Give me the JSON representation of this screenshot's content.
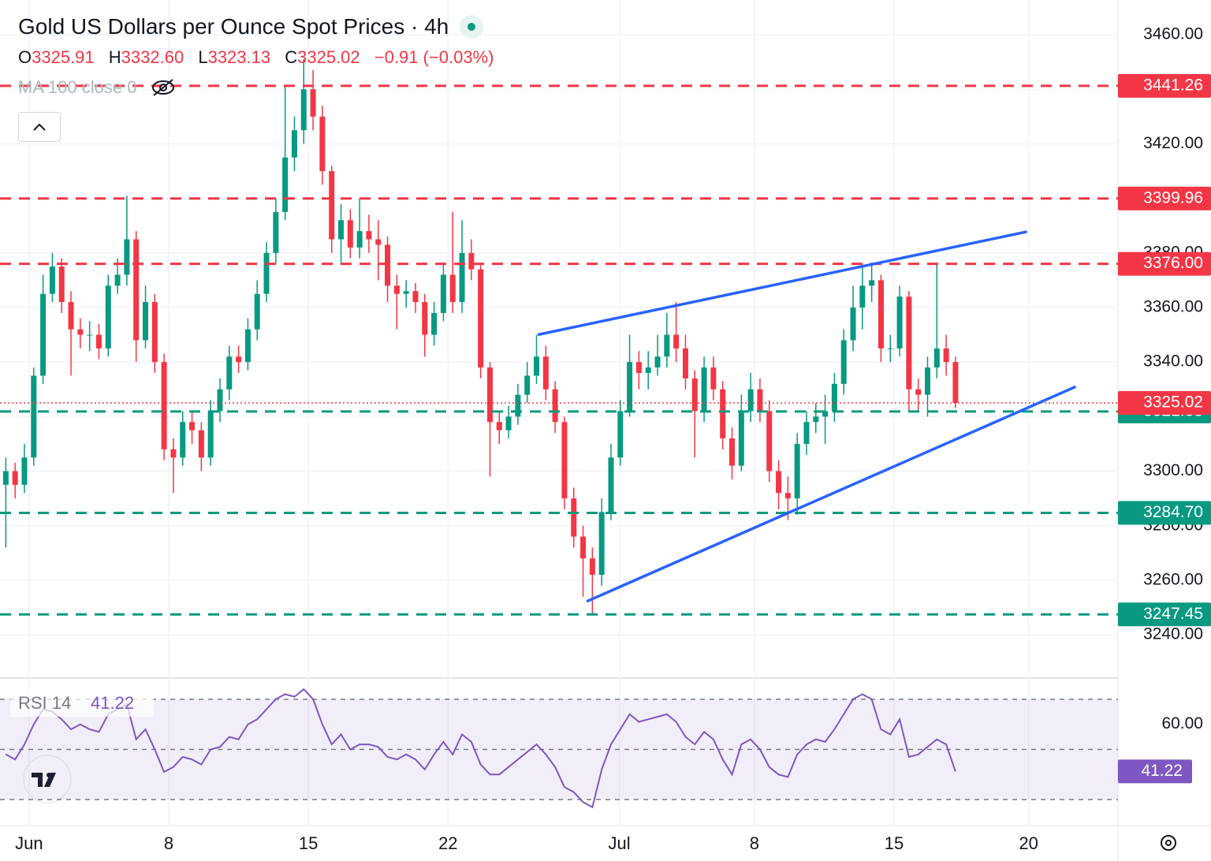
{
  "header": {
    "title": "Gold US Dollars per Ounce Spot Prices · 4h",
    "ohlc": [
      {
        "key": "O",
        "value": "3325.91"
      },
      {
        "key": "H",
        "value": "3332.60"
      },
      {
        "key": "L",
        "value": "3323.13"
      },
      {
        "key": "C",
        "value": "3325.02"
      }
    ],
    "change": "−0.91 (−0.03%)",
    "indicator": "MA 100 close 0"
  },
  "chart_data": [
    {
      "type": "candlestick",
      "x": [
        -5,
        -3,
        -1,
        1,
        3,
        5,
        7,
        9,
        11,
        13,
        15,
        17,
        19,
        21,
        23,
        25,
        27,
        29,
        31,
        33,
        35,
        37,
        39,
        41,
        43,
        45,
        47,
        49,
        51,
        53,
        55,
        57,
        59,
        61,
        63,
        65,
        67,
        69,
        71,
        73,
        75,
        77,
        79,
        81,
        83,
        85,
        87,
        89,
        91,
        93,
        95,
        97,
        99,
        101,
        103,
        105,
        107,
        109,
        111,
        113,
        115,
        117,
        119,
        121,
        123,
        125,
        127,
        129,
        131,
        133,
        135,
        137,
        139,
        141,
        143,
        145,
        147,
        149,
        151,
        153,
        155,
        157,
        159,
        161,
        163,
        165,
        167,
        169,
        171,
        173,
        175,
        177,
        179,
        181,
        183,
        185,
        187,
        189,
        191,
        193,
        195,
        197,
        199
      ],
      "open": [
        3295,
        3300,
        3295,
        3305,
        3335,
        3365,
        3375,
        3362,
        3352,
        3350,
        3350,
        3345,
        3368,
        3372,
        3385,
        3348,
        3362,
        3340,
        3308,
        3305,
        3318,
        3315,
        3305,
        3322,
        3330,
        3342,
        3340,
        3352,
        3365,
        3380,
        3395,
        3415,
        3425,
        3440,
        3430,
        3410,
        3385,
        3392,
        3382,
        3388,
        3385,
        3383,
        3368,
        3365,
        3366,
        3362,
        3350,
        3358,
        3372,
        3362,
        3380,
        3374,
        3338,
        3318,
        3315,
        3320,
        3328,
        3335,
        3342,
        3330,
        3318,
        3290,
        3276,
        3268,
        3262,
        3285,
        3305,
        3322,
        3340,
        3336,
        3338,
        3342,
        3350,
        3345,
        3334,
        3322,
        3338,
        3330,
        3312,
        3302,
        3322,
        3330,
        3322,
        3300,
        3292,
        3290,
        3310,
        3318,
        3320,
        3322,
        3332,
        3348,
        3360,
        3368,
        3370,
        3345,
        3345,
        3364,
        3330,
        3328,
        3338,
        3345,
        3340
      ],
      "high": [
        3305,
        3303,
        3310,
        3338,
        3372,
        3380,
        3378,
        3366,
        3356,
        3355,
        3354,
        3372,
        3378,
        3401,
        3388,
        3368,
        3365,
        3343,
        3312,
        3322,
        3322,
        3318,
        3326,
        3334,
        3346,
        3346,
        3356,
        3370,
        3384,
        3400,
        3441,
        3430,
        3451,
        3447,
        3434,
        3412,
        3398,
        3396,
        3400,
        3394,
        3392,
        3386,
        3372,
        3370,
        3369,
        3365,
        3362,
        3376,
        3395,
        3392,
        3385,
        3376,
        3340,
        3322,
        3324,
        3332,
        3340,
        3350,
        3346,
        3333,
        3320,
        3294,
        3280,
        3272,
        3290,
        3310,
        3326,
        3350,
        3344,
        3344,
        3350,
        3358,
        3362,
        3350,
        3337,
        3342,
        3342,
        3333,
        3316,
        3328,
        3336,
        3334,
        3326,
        3304,
        3298,
        3314,
        3322,
        3325,
        3328,
        3336,
        3352,
        3368,
        3376,
        3376,
        3372,
        3350,
        3368,
        3366,
        3334,
        3342,
        3376,
        3350,
        3342
      ],
      "low": [
        3272,
        3290,
        3292,
        3302,
        3332,
        3362,
        3358,
        3335,
        3345,
        3344,
        3341,
        3342,
        3365,
        3368,
        3340,
        3345,
        3336,
        3304,
        3292,
        3302,
        3310,
        3300,
        3302,
        3318,
        3326,
        3336,
        3337,
        3348,
        3362,
        3376,
        3392,
        3410,
        3420,
        3425,
        3405,
        3380,
        3376,
        3378,
        3378,
        3380,
        3370,
        3362,
        3352,
        3360,
        3358,
        3342,
        3346,
        3355,
        3358,
        3358,
        3370,
        3334,
        3298,
        3310,
        3312,
        3317,
        3325,
        3332,
        3326,
        3314,
        3286,
        3272,
        3254,
        3247.45,
        3258,
        3282,
        3302,
        3320,
        3330,
        3330,
        3335,
        3338,
        3340,
        3330,
        3305,
        3318,
        3326,
        3308,
        3297,
        3300,
        3318,
        3318,
        3296,
        3286,
        3282,
        3284,
        3306,
        3314,
        3310,
        3318,
        3328,
        3344,
        3352,
        3362,
        3340,
        3340,
        3342,
        3322,
        3322,
        3320,
        3334,
        3335,
        3323.13
      ],
      "close": [
        3300,
        3295,
        3305,
        3335,
        3365,
        3375,
        3362,
        3352,
        3350,
        3350,
        3345,
        3368,
        3372,
        3385,
        3348,
        3362,
        3340,
        3308,
        3305,
        3318,
        3315,
        3305,
        3322,
        3330,
        3342,
        3340,
        3352,
        3365,
        3380,
        3395,
        3415,
        3425,
        3440,
        3430,
        3410,
        3385,
        3392,
        3382,
        3388,
        3385,
        3383,
        3368,
        3365,
        3366,
        3362,
        3350,
        3358,
        3372,
        3362,
        3380,
        3374,
        3338,
        3318,
        3315,
        3320,
        3328,
        3335,
        3342,
        3330,
        3318,
        3290,
        3276,
        3268,
        3262,
        3285,
        3305,
        3322,
        3340,
        3336,
        3338,
        3342,
        3350,
        3345,
        3334,
        3322,
        3338,
        3330,
        3312,
        3302,
        3322,
        3330,
        3322,
        3300,
        3292,
        3290,
        3310,
        3318,
        3320,
        3322,
        3332,
        3348,
        3360,
        3368,
        3370,
        3345,
        3345,
        3364,
        3330,
        3328,
        3338,
        3345,
        3340,
        3325.02
      ],
      "up_color": "#089981",
      "down_color": "#f23645",
      "xlim": [
        -5.4,
        233.9
      ],
      "xticks": [
        {
          "value": 0,
          "label": "Jun"
        },
        {
          "value": 30,
          "label": "8"
        },
        {
          "value": 60,
          "label": "15"
        },
        {
          "value": 90,
          "label": "22"
        },
        {
          "value": 126.8,
          "label": "Jul"
        },
        {
          "value": 155.8,
          "label": "8"
        },
        {
          "value": 185.8,
          "label": "15"
        },
        {
          "value": 214.7,
          "label": "20"
        }
      ],
      "ylim": [
        3224.7,
        3471.3
      ],
      "yticks": [
        {
          "value": 3240,
          "label": "3240.00"
        },
        {
          "value": 3260,
          "label": "3260.00"
        },
        {
          "value": 3280,
          "label": "3280.00"
        },
        {
          "value": 3300,
          "label": "3300.00"
        },
        {
          "value": 3320,
          "label": "3320.00"
        },
        {
          "value": 3340,
          "label": "3340.00"
        },
        {
          "value": 3360,
          "label": "3360.00"
        },
        {
          "value": 3380,
          "label": "3380.00"
        },
        {
          "value": 3400,
          "label": "3400.00"
        },
        {
          "value": 3420,
          "label": "3420.00"
        },
        {
          "value": 3440,
          "label": "3440.00"
        },
        {
          "value": 3460,
          "label": "3460.00"
        }
      ],
      "grid": true,
      "levels": [
        {
          "value": 3441.26,
          "color": "#f23645"
        },
        {
          "value": 3399.96,
          "color": "#f23645"
        },
        {
          "value": 3376,
          "label": "3376.00",
          "color": "#f23645"
        },
        {
          "value": 3321.88,
          "color": "#089981"
        },
        {
          "value": 3284.7,
          "label": "3284.70",
          "color": "#089981"
        },
        {
          "value": 3247.45,
          "color": "#089981"
        }
      ],
      "last_price": {
        "value": 3325.02,
        "color": "#f23645"
      },
      "trendlines": [
        {
          "x": [
            109.5,
            214.1
          ],
          "y": [
            3350.1,
            3387.7
          ],
          "color": "#2962ff"
        },
        {
          "x": [
            120,
            224.6
          ],
          "y": [
            3252.4,
            3330.8
          ],
          "color": "#2962ff"
        }
      ]
    },
    {
      "type": "line",
      "title": "RSI 14",
      "values": [
        48,
        46,
        52,
        60,
        66,
        65,
        62,
        58,
        60,
        58,
        57,
        64,
        66,
        68,
        54,
        58,
        50,
        41,
        43,
        47,
        46,
        44,
        50,
        51,
        55,
        54,
        60,
        62,
        66,
        70,
        72,
        71,
        74,
        70,
        60,
        52,
        56,
        50,
        52,
        52,
        51,
        47,
        46,
        48,
        46,
        42,
        48,
        53,
        48,
        56,
        53,
        44,
        40,
        40,
        43,
        46,
        49,
        52,
        48,
        43,
        35,
        33,
        29,
        27,
        42,
        52,
        58,
        64,
        61,
        62,
        63,
        64,
        61,
        55,
        52,
        57,
        54,
        46,
        40,
        52,
        54,
        50,
        43,
        40,
        39,
        48,
        52,
        54,
        53,
        58,
        64,
        70,
        72,
        70,
        58,
        56,
        62,
        47,
        48,
        51,
        54,
        52,
        41.22
      ],
      "color": "#7e57c2",
      "ylim": [
        20.3,
        77.8
      ],
      "yticks": [
        {
          "value": 60,
          "label": "60.00"
        }
      ],
      "levels": [
        30,
        50,
        70
      ]
    }
  ]
}
